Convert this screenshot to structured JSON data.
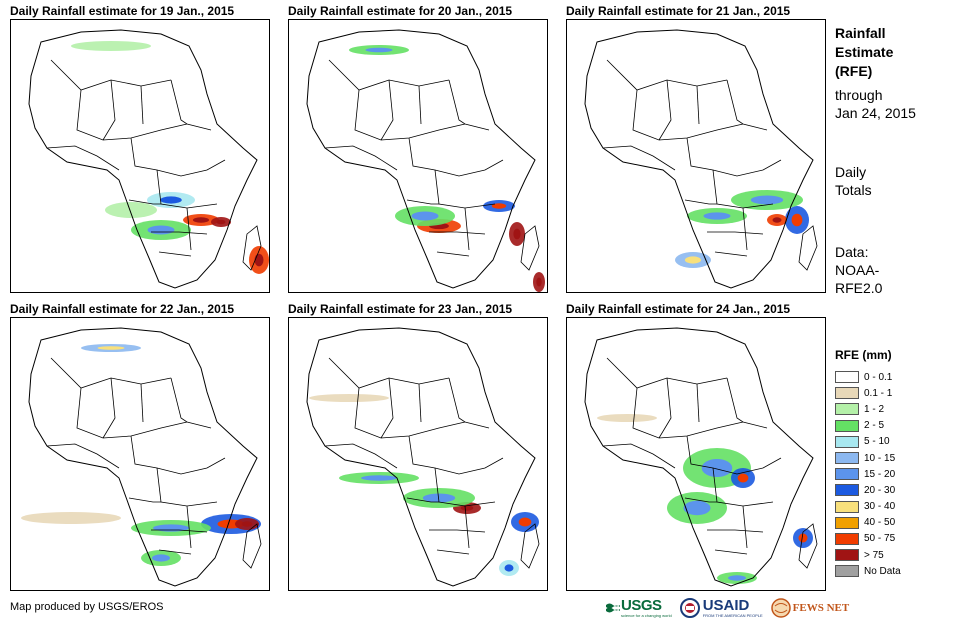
{
  "panels": [
    {
      "title": "Daily Rainfall estimate for 19 Jan., 2015"
    },
    {
      "title": "Daily Rainfall estimate for 20 Jan., 2015"
    },
    {
      "title": "Daily Rainfall estimate for 21 Jan., 2015"
    },
    {
      "title": "Daily Rainfall estimate for 22 Jan., 2015"
    },
    {
      "title": "Daily Rainfall estimate for 23 Jan., 2015"
    },
    {
      "title": "Daily Rainfall estimate for 24 Jan., 2015"
    }
  ],
  "side": {
    "title_line1": "Rainfall",
    "title_line2": "Estimate",
    "title_line3": "(RFE)",
    "through_line1": "through",
    "through_line2": "Jan 24, 2015",
    "totals_line1": "Daily",
    "totals_line2": "Totals",
    "data_line1": "Data:",
    "data_line2": "NOAA-",
    "data_line3": "RFE2.0"
  },
  "legend": {
    "title": "RFE (mm)",
    "items": [
      {
        "label": "0 - 0.1",
        "color": "#ffffff"
      },
      {
        "label": "0.1 - 1",
        "color": "#e8d8b8"
      },
      {
        "label": "1 - 2",
        "color": "#b4f0a8"
      },
      {
        "label": "2 - 5",
        "color": "#64e064"
      },
      {
        "label": "5 - 10",
        "color": "#a8e8f0"
      },
      {
        "label": "10 - 15",
        "color": "#8cb8f0"
      },
      {
        "label": "15 - 20",
        "color": "#5c94ec"
      },
      {
        "label": "20 - 30",
        "color": "#1c5ae0"
      },
      {
        "label": "30 - 40",
        "color": "#f8e07c"
      },
      {
        "label": "40 - 50",
        "color": "#f0a000"
      },
      {
        "label": "50 - 75",
        "color": "#f03c00"
      },
      {
        "label": "> 75",
        "color": "#a01414"
      },
      {
        "label": "No Data",
        "color": "#a0a0a0"
      }
    ]
  },
  "credit": "Map produced by USGS/EROS",
  "logos": {
    "usgs": "USGS",
    "usgs_tagline": "science for a changing world",
    "usaid": "USAID",
    "usaid_tagline": "FROM THE AMERICAN PEOPLE",
    "fewsnet": "FEWS NET"
  }
}
